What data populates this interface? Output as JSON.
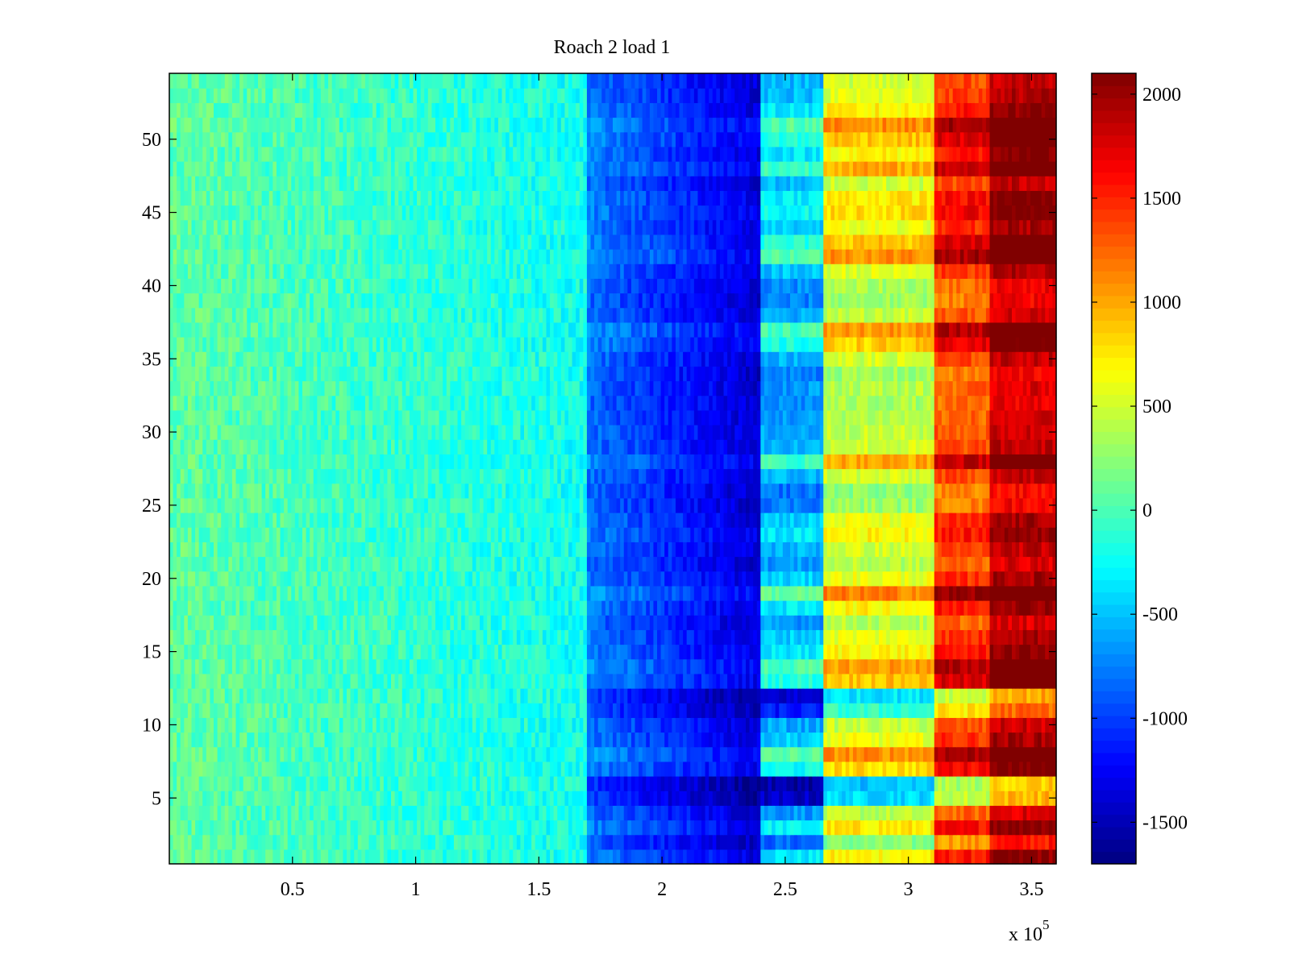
{
  "chart_data": {
    "type": "heatmap",
    "title": "Roach 2 load 1",
    "xlabel": "",
    "ylabel": "",
    "x_exponent_label": "x 10",
    "x_exponent_power": "5",
    "x_range": [
      0,
      360000
    ],
    "y_range": [
      0.5,
      54.5
    ],
    "rows": 54,
    "x_ticks": [
      {
        "value": 50000,
        "label": "0.5"
      },
      {
        "value": 100000,
        "label": "1"
      },
      {
        "value": 150000,
        "label": "1.5"
      },
      {
        "value": 200000,
        "label": "2"
      },
      {
        "value": 250000,
        "label": "2.5"
      },
      {
        "value": 300000,
        "label": "3"
      },
      {
        "value": 350000,
        "label": "3.5"
      }
    ],
    "y_ticks": [
      {
        "value": 5,
        "label": "5"
      },
      {
        "value": 10,
        "label": "10"
      },
      {
        "value": 15,
        "label": "15"
      },
      {
        "value": 20,
        "label": "20"
      },
      {
        "value": 25,
        "label": "25"
      },
      {
        "value": 30,
        "label": "30"
      },
      {
        "value": 35,
        "label": "35"
      },
      {
        "value": 40,
        "label": "40"
      },
      {
        "value": 45,
        "label": "45"
      },
      {
        "value": 50,
        "label": "50"
      }
    ],
    "colorbar": {
      "colormap": "jet",
      "range": [
        -1700,
        2100
      ],
      "ticks": [
        {
          "value": -1500,
          "label": "-1500"
        },
        {
          "value": -1000,
          "label": "-1000"
        },
        {
          "value": -500,
          "label": "-500"
        },
        {
          "value": 0,
          "label": "0"
        },
        {
          "value": 500,
          "label": "500"
        },
        {
          "value": 1000,
          "label": "1000"
        },
        {
          "value": 1500,
          "label": "1500"
        },
        {
          "value": 2000,
          "label": "2000"
        }
      ]
    },
    "segments": [
      {
        "x_start": 0,
        "x_end": 170000,
        "value_start": 80,
        "value_end": -220,
        "description_level": "near zero, slowly decreasing"
      },
      {
        "x_start": 170000,
        "x_end": 240000,
        "value_start": -750,
        "value_end": -1350,
        "description_level": "blue, decreasing"
      },
      {
        "x_start": 240000,
        "x_end": 265000,
        "value": -350,
        "description_level": "cyan"
      },
      {
        "x_start": 265000,
        "x_end": 310000,
        "value": 700,
        "description_level": "yellow-orange"
      },
      {
        "x_start": 310000,
        "x_end": 333000,
        "value": 1550,
        "description_level": "red"
      },
      {
        "x_start": 333000,
        "x_end": 360000,
        "value": 2050,
        "description_level": "dark red"
      }
    ],
    "row_offsets": [
      {
        "row": 1,
        "offset": 0
      },
      {
        "row": 2,
        "offset": -500
      },
      {
        "row": 3,
        "offset": 50
      },
      {
        "row": 4,
        "offset": -300
      },
      {
        "row": 5,
        "offset": -1100
      },
      {
        "row": 6,
        "offset": -1200
      },
      {
        "row": 7,
        "offset": 100
      },
      {
        "row": 8,
        "offset": 400
      },
      {
        "row": 9,
        "offset": -100
      },
      {
        "row": 10,
        "offset": -250
      },
      {
        "row": 11,
        "offset": -800
      },
      {
        "row": 12,
        "offset": -1050
      },
      {
        "row": 13,
        "offset": 200
      },
      {
        "row": 14,
        "offset": 350
      },
      {
        "row": 15,
        "offset": 0
      },
      {
        "row": 16,
        "offset": -100
      },
      {
        "row": 17,
        "offset": -300
      },
      {
        "row": 18,
        "offset": 0
      },
      {
        "row": 19,
        "offset": 450
      },
      {
        "row": 20,
        "offset": -100
      },
      {
        "row": 21,
        "offset": -300
      },
      {
        "row": 22,
        "offset": -200
      },
      {
        "row": 23,
        "offset": 0
      },
      {
        "row": 24,
        "offset": -100
      },
      {
        "row": 25,
        "offset": -400
      },
      {
        "row": 26,
        "offset": -450
      },
      {
        "row": 27,
        "offset": -200
      },
      {
        "row": 28,
        "offset": 300
      },
      {
        "row": 29,
        "offset": -200
      },
      {
        "row": 30,
        "offset": -250
      },
      {
        "row": 31,
        "offset": -300
      },
      {
        "row": 32,
        "offset": -350
      },
      {
        "row": 33,
        "offset": -300
      },
      {
        "row": 34,
        "offset": -400
      },
      {
        "row": 35,
        "offset": -200
      },
      {
        "row": 36,
        "offset": 150
      },
      {
        "row": 37,
        "offset": 350
      },
      {
        "row": 38,
        "offset": -250
      },
      {
        "row": 39,
        "offset": -400
      },
      {
        "row": 40,
        "offset": -350
      },
      {
        "row": 41,
        "offset": -150
      },
      {
        "row": 42,
        "offset": 400
      },
      {
        "row": 43,
        "offset": 200
      },
      {
        "row": 44,
        "offset": -100
      },
      {
        "row": 45,
        "offset": 100
      },
      {
        "row": 46,
        "offset": 50
      },
      {
        "row": 47,
        "offset": -200
      },
      {
        "row": 48,
        "offset": 300
      },
      {
        "row": 49,
        "offset": 0
      },
      {
        "row": 50,
        "offset": 200
      },
      {
        "row": 51,
        "offset": 400
      },
      {
        "row": 52,
        "offset": 0
      },
      {
        "row": 53,
        "offset": -150
      },
      {
        "row": 54,
        "offset": -200
      }
    ],
    "grid": false,
    "legend": "colorbar-right"
  }
}
